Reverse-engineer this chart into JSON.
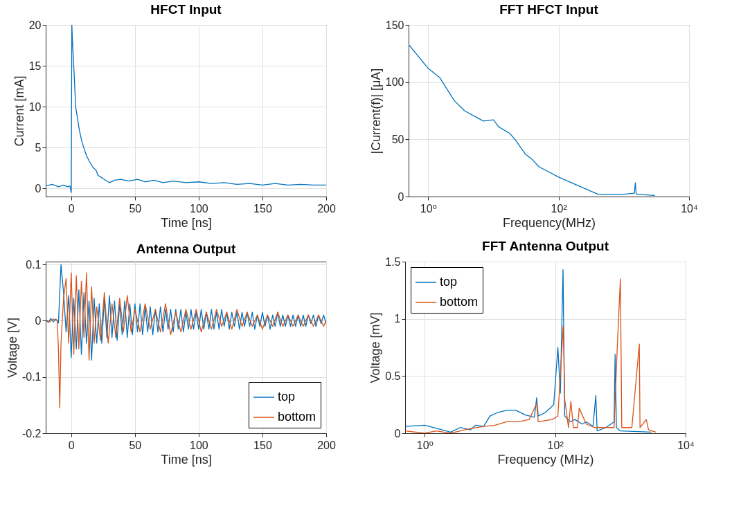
{
  "chart_data": [
    {
      "type": "line",
      "title": "HFCT Input",
      "xlabel": "Time [ns]",
      "ylabel": "Current [mA]",
      "xlim": [
        -20,
        200
      ],
      "ylim": [
        -1,
        20
      ],
      "xticks": [
        0,
        50,
        100,
        150,
        200
      ],
      "yticks": [
        0,
        5,
        10,
        15,
        20
      ],
      "grid": true,
      "x": [
        -20,
        -15,
        -10,
        -6,
        -3,
        -1,
        0,
        0.5,
        1,
        2,
        3.5,
        5,
        6.3,
        8,
        9.8,
        12,
        14.3,
        17,
        19.5,
        21,
        23,
        26,
        30,
        34,
        39,
        45,
        52,
        58,
        65,
        72,
        80,
        90,
        100,
        110,
        120,
        130,
        140,
        150,
        160,
        170,
        180,
        190,
        200
      ],
      "series": [
        {
          "color": "#0072bd",
          "values": [
            0.3,
            0.5,
            0.2,
            0.4,
            0.2,
            0.3,
            -0.5,
            20,
            18,
            15,
            10,
            8.5,
            7.2,
            6,
            5,
            4,
            3.3,
            2.6,
            2.2,
            1.6,
            1.4,
            1.1,
            0.7,
            1.0,
            1.1,
            0.9,
            1.1,
            0.8,
            1.0,
            0.7,
            0.9,
            0.7,
            0.8,
            0.6,
            0.7,
            0.5,
            0.6,
            0.4,
            0.6,
            0.4,
            0.5,
            0.4,
            0.4
          ]
        }
      ]
    },
    {
      "type": "line",
      "title": "FFT HFCT Input",
      "xlabel": "Frequency(MHz)",
      "ylabel": "|Current(f)| [μA]",
      "log": "x",
      "xlim": [
        0.5,
        10000
      ],
      "ylim": [
        0,
        150
      ],
      "xticks": [
        {
          "value": 1,
          "label": "10⁰"
        },
        {
          "value": 100,
          "label": "10²"
        },
        {
          "value": 10000,
          "label": "10⁴"
        }
      ],
      "yticks": [
        0,
        50,
        100,
        150
      ],
      "grid": true,
      "x": [
        0.5,
        1,
        1.5,
        2.5,
        3.6,
        5.6,
        7,
        10,
        12,
        18,
        22,
        31,
        40,
        50,
        100,
        190,
        400,
        1000,
        1450,
        1500,
        1550,
        3000
      ],
      "series": [
        {
          "color": "#0072bd",
          "values": [
            133,
            112,
            104,
            84,
            75,
            69,
            66,
            67,
            61,
            55,
            49,
            37,
            32,
            26,
            17,
            10,
            2,
            2,
            3,
            12,
            2,
            1
          ]
        }
      ]
    },
    {
      "type": "line",
      "title": "Antenna Output",
      "xlabel": "Time [ns]",
      "ylabel": "Voltage [V]",
      "xlim": [
        -20,
        200
      ],
      "ylim": [
        -0.2,
        0.105
      ],
      "xticks": [
        0,
        50,
        100,
        150,
        200
      ],
      "yticks": [
        -0.2,
        -0.1,
        0,
        0.1
      ],
      "grid": true,
      "legend": "bottom right",
      "series": [
        {
          "name": "top",
          "color": "#0072bd",
          "x": [
            -20,
            -18,
            -16,
            -14,
            -12,
            -10,
            -8,
            -6,
            -4,
            -2,
            0,
            2,
            4,
            6,
            8,
            10,
            12,
            14,
            16,
            18,
            20,
            22,
            24,
            26,
            28,
            30,
            32,
            34,
            36,
            38,
            40,
            42,
            44,
            46,
            48,
            50,
            52,
            54,
            56,
            58,
            60,
            62,
            64,
            66,
            68,
            70,
            72,
            74,
            76,
            78,
            80,
            82,
            84,
            86,
            88,
            90,
            92,
            94,
            96,
            98,
            100,
            102,
            104,
            106,
            108,
            110,
            112,
            114,
            116,
            118,
            120,
            122,
            124,
            126,
            128,
            130,
            132,
            134,
            136,
            138,
            140,
            142,
            144,
            146,
            148,
            150,
            152,
            154,
            156,
            158,
            160,
            162,
            164,
            166,
            168,
            170,
            172,
            174,
            176,
            178,
            180,
            182,
            184,
            186,
            188,
            190,
            192,
            194,
            196,
            198,
            200
          ],
          "values": [
            0.002,
            -0.003,
            0.004,
            -0.002,
            0.003,
            -0.004,
            0.1,
            0.05,
            -0.02,
            0.045,
            -0.065,
            0.04,
            -0.05,
            0.055,
            -0.06,
            0.05,
            -0.04,
            0.035,
            -0.07,
            0.04,
            -0.04,
            0.03,
            -0.04,
            0.04,
            -0.03,
            0.045,
            -0.03,
            0.035,
            -0.035,
            0.03,
            -0.025,
            0.035,
            -0.03,
            0.03,
            -0.025,
            0.03,
            -0.02,
            0.03,
            -0.025,
            0.025,
            -0.02,
            0.025,
            -0.025,
            0.02,
            -0.02,
            0.025,
            -0.02,
            0.02,
            -0.015,
            0.02,
            -0.02,
            0.02,
            -0.015,
            0.02,
            -0.02,
            0.015,
            -0.015,
            0.02,
            -0.015,
            0.015,
            -0.015,
            0.02,
            -0.015,
            0.015,
            -0.015,
            0.02,
            -0.015,
            0.015,
            -0.015,
            0.02,
            -0.01,
            0.015,
            -0.015,
            0.015,
            -0.01,
            0.015,
            -0.015,
            0.015,
            -0.01,
            0.015,
            -0.01,
            0.015,
            -0.015,
            0.01,
            -0.01,
            0.015,
            -0.01,
            0.01,
            -0.015,
            0.01,
            -0.01,
            0.015,
            -0.01,
            0.01,
            -0.01,
            0.01,
            -0.01,
            0.01,
            -0.01,
            0.01,
            -0.01,
            0.01,
            -0.01,
            0.01,
            -0.005,
            0.01,
            -0.01,
            0.01,
            -0.005,
            0.01,
            -0.005
          ]
        },
        {
          "name": "bottom",
          "color": "#d95319",
          "x": [
            -20,
            -17,
            -14,
            -11,
            -10,
            -9,
            -8,
            -6,
            -4,
            -2,
            0,
            2,
            4,
            6,
            8,
            10,
            12,
            14,
            16,
            18,
            20,
            23,
            26,
            29,
            32,
            35,
            38,
            41,
            44,
            47,
            50,
            54,
            58,
            62,
            66,
            70,
            74,
            78,
            82,
            86,
            90,
            94,
            98,
            102,
            106,
            110,
            114,
            118,
            122,
            126,
            130,
            134,
            138,
            142,
            146,
            150,
            154,
            158,
            162,
            166,
            170,
            174,
            178,
            182,
            186,
            190,
            194,
            198,
            200
          ],
          "values": [
            0.002,
            -0.002,
            0.003,
            0,
            -0.05,
            -0.155,
            -0.04,
            0.04,
            0.075,
            -0.04,
            0.085,
            -0.06,
            0.08,
            -0.05,
            0.07,
            -0.03,
            0.085,
            -0.07,
            0.06,
            -0.04,
            0.025,
            -0.035,
            0.05,
            -0.04,
            0.03,
            -0.03,
            0.04,
            -0.02,
            0.045,
            -0.02,
            0.02,
            -0.02,
            0.03,
            -0.015,
            0.02,
            -0.02,
            0.03,
            -0.025,
            0.015,
            -0.02,
            0.02,
            -0.015,
            0.02,
            -0.02,
            0.015,
            -0.015,
            0.02,
            -0.01,
            0.015,
            -0.015,
            0.02,
            -0.01,
            0.015,
            -0.01,
            0.01,
            -0.015,
            0.01,
            -0.01,
            0.015,
            -0.01,
            0.01,
            -0.01,
            0.01,
            -0.01,
            0.01,
            -0.01,
            0.01,
            -0.01,
            0
          ]
        }
      ]
    },
    {
      "type": "line",
      "title": "FFT Antenna Output",
      "xlabel": "Frequency (MHz)",
      "ylabel": "Voltage [mV]",
      "log": "x",
      "xlim": [
        0.5,
        10000
      ],
      "ylim": [
        0,
        1.5
      ],
      "xticks": [
        {
          "value": 1,
          "label": "10⁰"
        },
        {
          "value": 100,
          "label": "10²"
        },
        {
          "value": 10000,
          "label": "10⁴"
        }
      ],
      "yticks": [
        0,
        0.5,
        1,
        1.5
      ],
      "grid": true,
      "legend": "top left",
      "series": [
        {
          "name": "top",
          "color": "#0072bd",
          "x": [
            0.5,
            1,
            2.5,
            3.5,
            5,
            6,
            8,
            10,
            13,
            18,
            25,
            35,
            48,
            52,
            55,
            70,
            95,
            110,
            120,
            132,
            140,
            170,
            200,
            260,
            300,
            380,
            420,
            440,
            600,
            800,
            830,
            870,
            1000,
            3000
          ],
          "values": [
            0.06,
            0.07,
            0.01,
            0.05,
            0.03,
            0.07,
            0.06,
            0.15,
            0.18,
            0.2,
            0.2,
            0.16,
            0.14,
            0.31,
            0.15,
            0.18,
            0.25,
            0.75,
            0.35,
            1.43,
            0.15,
            0.1,
            0.12,
            0.08,
            0.1,
            0.06,
            0.33,
            0.02,
            0.05,
            0.1,
            0.69,
            0.05,
            0.02,
            0.01
          ]
        },
        {
          "name": "bottom",
          "color": "#d95319",
          "x": [
            0.5,
            1,
            1.5,
            2.5,
            3.5,
            5,
            8,
            12,
            18,
            28,
            40,
            52,
            55,
            90,
            110,
            133,
            140,
            160,
            174,
            190,
            220,
            234,
            300,
            400,
            600,
            800,
            900,
            1000,
            1050,
            1500,
            1950,
            2000,
            2500,
            2700,
            3500
          ],
          "values": [
            0.02,
            0,
            0.02,
            0,
            0.02,
            0.04,
            0.06,
            0.07,
            0.1,
            0.1,
            0.12,
            0.26,
            0.1,
            0.12,
            0.15,
            0.94,
            0.3,
            0.05,
            0.28,
            0.05,
            0.05,
            0.22,
            0.08,
            0.05,
            0.05,
            0.05,
            0.78,
            1.35,
            0.05,
            0.05,
            0.78,
            0.05,
            0.12,
            0.03,
            0.01
          ]
        }
      ]
    }
  ]
}
